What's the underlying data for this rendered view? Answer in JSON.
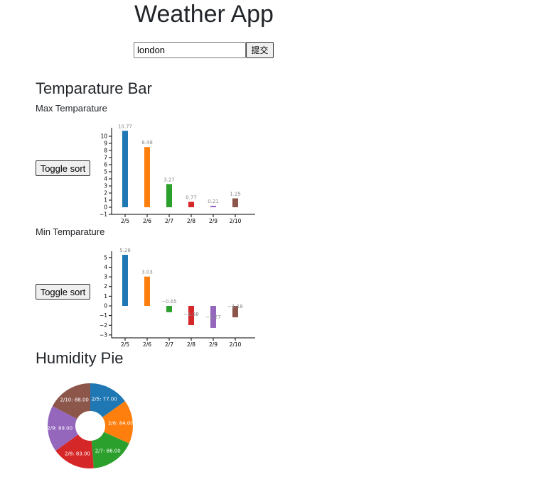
{
  "header": {
    "title": "Weather App",
    "search_value": "london",
    "submit_label": "提交"
  },
  "temp_section": {
    "title": "Temparature Bar",
    "max_label": "Max Temparature",
    "min_label": "Min Temparature",
    "toggle_label": "Toggle sort"
  },
  "humidity_section": {
    "title": "Humidity Pie"
  },
  "colors": [
    "#1f77b4",
    "#ff7f0e",
    "#2ca02c",
    "#d62728",
    "#9467bd",
    "#8c564b"
  ],
  "chart_data": [
    {
      "type": "bar",
      "title": "Max Temparature",
      "categories": [
        "2/5",
        "2/6",
        "2/7",
        "2/8",
        "2/9",
        "2/10"
      ],
      "values": [
        10.77,
        8.48,
        3.27,
        0.77,
        0.21,
        1.25
      ],
      "ylim": [
        -1,
        11
      ],
      "yticks": [
        -1,
        0,
        1,
        2,
        3,
        4,
        5,
        6,
        7,
        8,
        9,
        10
      ],
      "ytick_labels": [
        "−1",
        "0",
        "1",
        "2",
        "3",
        "4",
        "5",
        "6",
        "7",
        "8",
        "9",
        "10"
      ],
      "value_labels": [
        "10.77",
        "8.48",
        "3.27",
        "0.77",
        "0.21",
        "1.25"
      ]
    },
    {
      "type": "bar",
      "title": "Min Temparature",
      "categories": [
        "2/5",
        "2/6",
        "2/7",
        "2/8",
        "2/9",
        "2/10"
      ],
      "values": [
        5.28,
        3.03,
        -0.65,
        -1.98,
        -2.27,
        -1.18
      ],
      "ylim": [
        -3.3,
        5.5
      ],
      "yticks": [
        -3,
        -2,
        -1,
        0,
        1,
        2,
        3,
        4,
        5
      ],
      "ytick_labels": [
        "−3",
        "−2",
        "−1",
        "0",
        "1",
        "2",
        "3",
        "4",
        "5"
      ],
      "value_labels": [
        "5.28",
        "3.03",
        "−0.65",
        "−1.98",
        "−2.27",
        "−1.18"
      ]
    },
    {
      "type": "pie",
      "title": "Humidity Pie",
      "categories": [
        "2/5",
        "2/6",
        "2/7",
        "2/8",
        "2/9",
        "2/10"
      ],
      "values": [
        77.0,
        84.0,
        86.0,
        83.0,
        89.0,
        88.0
      ],
      "labels": [
        "2/5: 77.00",
        "2/6: 84.00",
        "2/7: 86.00",
        "2/8: 83.00",
        "2/9: 89.00",
        "2/10: 88.00"
      ]
    }
  ]
}
